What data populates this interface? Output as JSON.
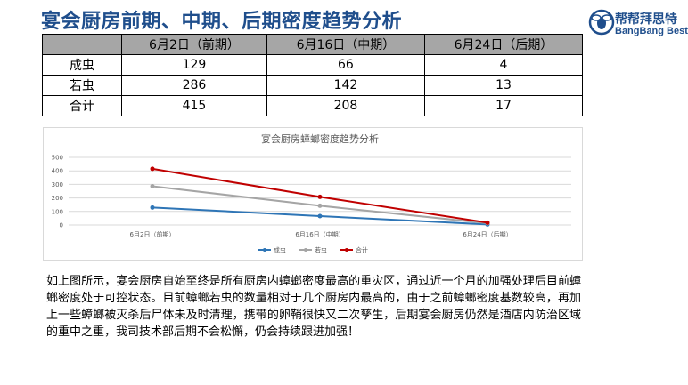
{
  "title": "宴会厨房前期、中期、后期密度趋势分析",
  "logo": {
    "cn": "帮帮拜思特",
    "en": "BangBang Best",
    "icon": "bee-logo-icon"
  },
  "table": {
    "headers": [
      "",
      "6月2日（前期）",
      "6月16日（中期）",
      "6月24日（后期）"
    ],
    "rows": [
      {
        "label": "成虫",
        "values": [
          "129",
          "66",
          "4"
        ]
      },
      {
        "label": "若虫",
        "values": [
          "286",
          "142",
          "13"
        ]
      },
      {
        "label": "合计",
        "values": [
          "415",
          "208",
          "17"
        ]
      }
    ]
  },
  "chart_data": {
    "type": "line",
    "title": "宴会厨房蟑螂密度趋势分析",
    "categories": [
      "6月2日（前期）",
      "6月16日（中期）",
      "6月24日（后期）"
    ],
    "series": [
      {
        "name": "成虫",
        "values": [
          129,
          66,
          4
        ],
        "color": "#2e75b6"
      },
      {
        "name": "若虫",
        "values": [
          286,
          142,
          13
        ],
        "color": "#a5a5a5"
      },
      {
        "name": "合计",
        "values": [
          415,
          208,
          17
        ],
        "color": "#c00000"
      }
    ],
    "ylim": [
      0,
      500
    ],
    "yticks": [
      "0",
      "100",
      "200",
      "300",
      "400",
      "500"
    ],
    "grid": true,
    "legend": "bottom"
  },
  "paragraph": "如上图所示，宴会厨房自始至终是所有厨房内蟑螂密度最高的重灾区，通过近一个月的加强处理后目前蟑螂密度处于可控状态。目前蟑螂若虫的数量相对于几个厨房内最高的，由于之前蟑螂密度基数较高，再加上一些蟑螂被灭杀后尸体未及时清理，携带的卵鞘很快又二次孳生，后期宴会厨房仍然是酒店内防治区域的重中之重，我司技术部后期不会松懈，仍会持续跟进加强！"
}
